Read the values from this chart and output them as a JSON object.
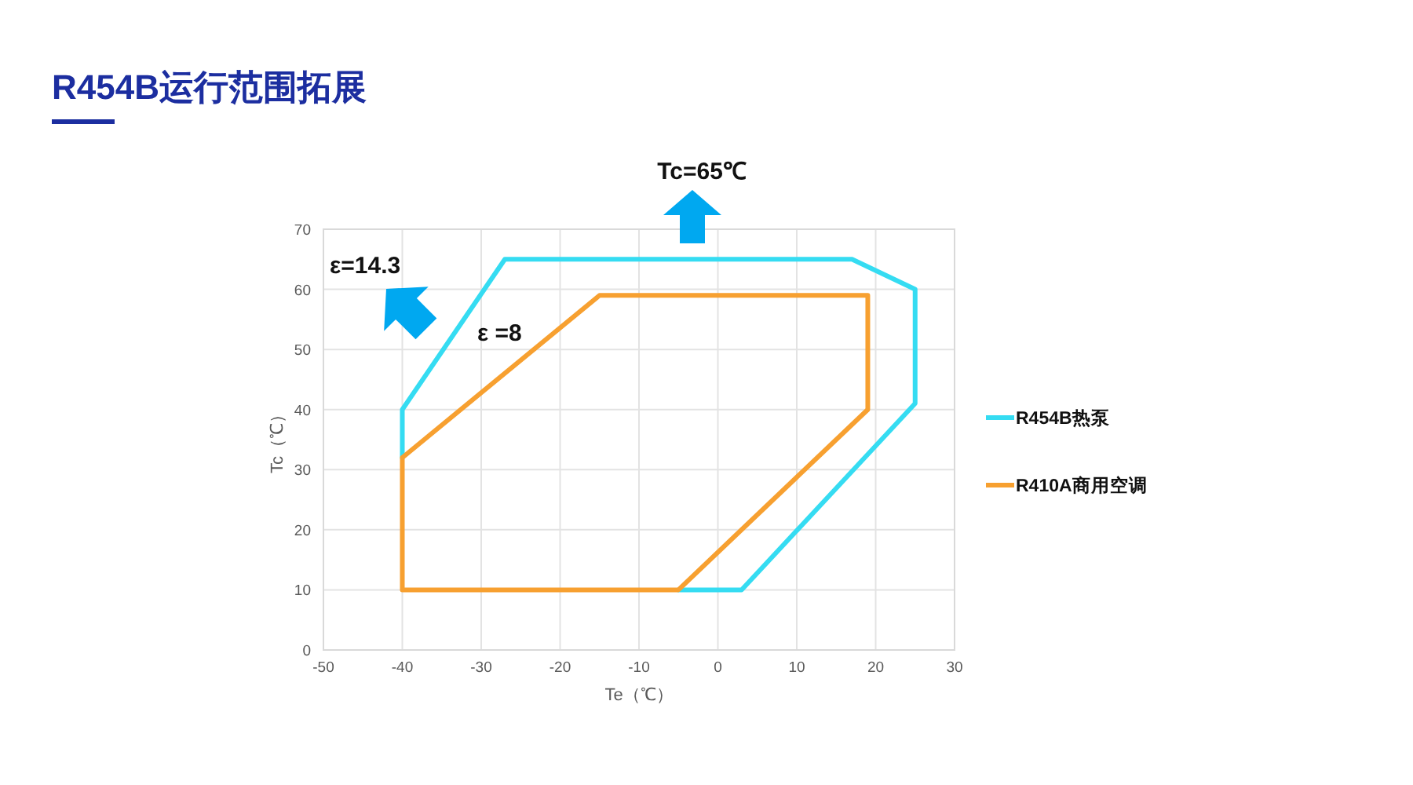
{
  "chart_data": {
    "type": "line",
    "title": "R454B运行范围拓展",
    "xlabel": "Te（℃）",
    "ylabel": "Tc（℃）",
    "xlim": [
      -50,
      30
    ],
    "ylim": [
      0,
      70
    ],
    "xticks": [
      -50,
      -40,
      -30,
      -20,
      -10,
      0,
      10,
      20,
      30
    ],
    "yticks": [
      0,
      10,
      20,
      30,
      40,
      50,
      60,
      70
    ],
    "grid": true,
    "legend": "right",
    "series": [
      {
        "name": "R454B热泵",
        "color": "#35dcf2",
        "x": [
          -40,
          -40,
          -27,
          17,
          25,
          25,
          3,
          -5
        ],
        "values": [
          32,
          40,
          65,
          65,
          60,
          41,
          10,
          10
        ]
      },
      {
        "name": "R410A商用空调",
        "color": "#f7a030",
        "x": [
          -40,
          -40,
          -15,
          19,
          19,
          -5,
          -40,
          -40
        ],
        "values": [
          10,
          32,
          59,
          59,
          40,
          10,
          10,
          32
        ]
      }
    ],
    "annotations": [
      "Tc=65℃",
      "ε=14.3",
      "ε =8"
    ]
  }
}
